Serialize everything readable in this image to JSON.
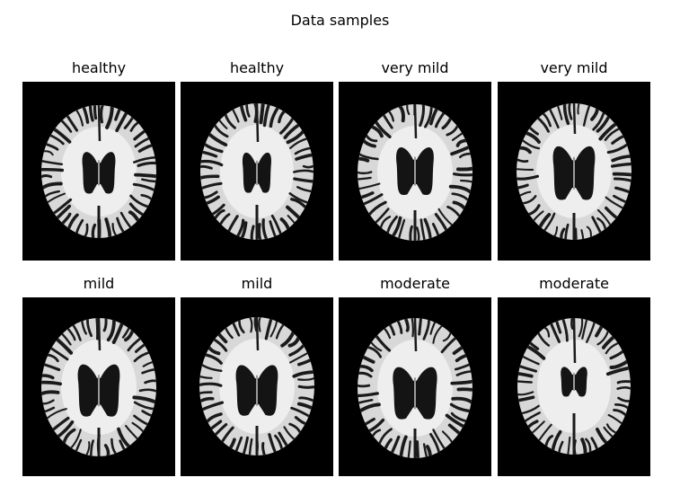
{
  "figure": {
    "title": "Data samples"
  },
  "samples": [
    {
      "label": "healthy"
    },
    {
      "label": "healthy"
    },
    {
      "label": "very mild"
    },
    {
      "label": "very mild"
    },
    {
      "label": "mild"
    },
    {
      "label": "mild"
    },
    {
      "label": "moderate"
    },
    {
      "label": "moderate"
    }
  ],
  "colors": {
    "background": "#000000",
    "tissue": "#d8d8d8",
    "sulci": "#1a1a1a",
    "ventricle": "#141414"
  }
}
